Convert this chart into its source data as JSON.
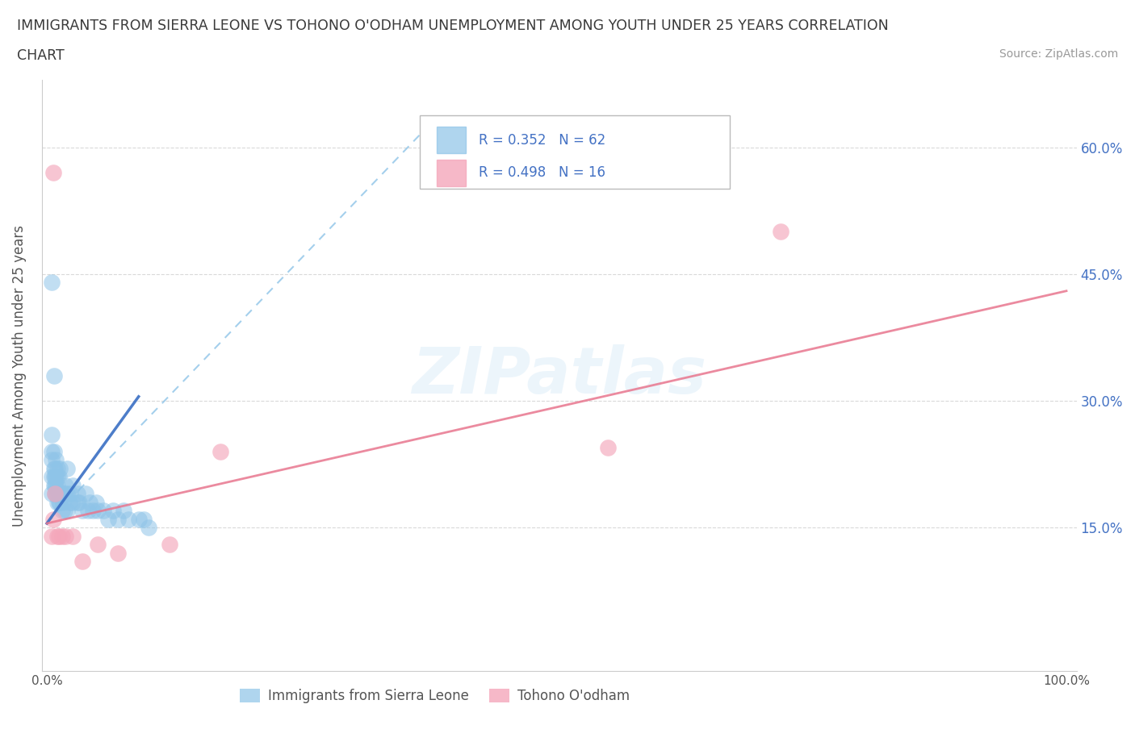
{
  "title_line1": "IMMIGRANTS FROM SIERRA LEONE VS TOHONO O'ODHAM UNEMPLOYMENT AMONG YOUTH UNDER 25 YEARS CORRELATION",
  "title_line2": "CHART",
  "source_text": "Source: ZipAtlas.com",
  "ylabel": "Unemployment Among Youth under 25 years",
  "xlim": [
    0.0,
    1.0
  ],
  "ylim": [
    0.0,
    0.65
  ],
  "y_ticks": [
    0.15,
    0.3,
    0.45,
    0.6
  ],
  "y_tick_right_labels": [
    "15.0%",
    "30.0%",
    "45.0%",
    "60.0%"
  ],
  "x_ticks": [
    0.0,
    1.0
  ],
  "x_tick_labels": [
    "0.0%",
    "100.0%"
  ],
  "legend_label1": "Immigrants from Sierra Leone",
  "legend_label2": "Tohono O'odham",
  "R1": 0.352,
  "N1": 62,
  "R2": 0.498,
  "N2": 16,
  "color_blue": "#8ec4e8",
  "color_pink": "#f4a7bb",
  "color_pink_line": "#e8768e",
  "color_blue_line_solid": "#3a6fc4",
  "color_blue_line_dash": "#8ec4e8",
  "color_tick_right": "#4472c4",
  "watermark": "ZIPatlas",
  "background_color": "#ffffff",
  "blue_solid_line_x": [
    0.0,
    0.09
  ],
  "blue_solid_line_y": [
    0.155,
    0.305
  ],
  "blue_dash_line_x": [
    0.0,
    0.37
  ],
  "blue_dash_line_y": [
    0.155,
    0.62
  ],
  "pink_line_x": [
    0.0,
    1.0
  ],
  "pink_line_y": [
    0.155,
    0.43
  ],
  "blue_scatter_x": [
    0.005,
    0.005,
    0.005,
    0.005,
    0.005,
    0.007,
    0.007,
    0.007,
    0.007,
    0.008,
    0.008,
    0.008,
    0.008,
    0.009,
    0.009,
    0.009,
    0.009,
    0.01,
    0.01,
    0.01,
    0.01,
    0.01,
    0.012,
    0.012,
    0.012,
    0.013,
    0.013,
    0.013,
    0.015,
    0.015,
    0.016,
    0.017,
    0.017,
    0.018,
    0.02,
    0.02,
    0.02,
    0.022,
    0.023,
    0.025,
    0.025,
    0.03,
    0.03,
    0.032,
    0.035,
    0.038,
    0.04,
    0.042,
    0.045,
    0.048,
    0.05,
    0.055,
    0.06,
    0.065,
    0.07,
    0.075,
    0.08,
    0.09,
    0.095,
    0.1,
    0.005,
    0.007
  ],
  "blue_scatter_y": [
    0.19,
    0.21,
    0.23,
    0.24,
    0.26,
    0.2,
    0.21,
    0.22,
    0.24,
    0.19,
    0.2,
    0.21,
    0.22,
    0.19,
    0.2,
    0.21,
    0.23,
    0.18,
    0.19,
    0.2,
    0.21,
    0.22,
    0.18,
    0.19,
    0.21,
    0.18,
    0.19,
    0.22,
    0.17,
    0.19,
    0.18,
    0.17,
    0.19,
    0.2,
    0.17,
    0.19,
    0.22,
    0.18,
    0.19,
    0.18,
    0.2,
    0.18,
    0.19,
    0.18,
    0.17,
    0.19,
    0.17,
    0.18,
    0.17,
    0.18,
    0.17,
    0.17,
    0.16,
    0.17,
    0.16,
    0.17,
    0.16,
    0.16,
    0.16,
    0.15,
    0.44,
    0.33
  ],
  "pink_scatter_x": [
    0.005,
    0.006,
    0.006,
    0.008,
    0.01,
    0.012,
    0.015,
    0.018,
    0.025,
    0.035,
    0.05,
    0.07,
    0.12,
    0.17,
    0.55,
    0.72
  ],
  "pink_scatter_y": [
    0.14,
    0.16,
    0.57,
    0.19,
    0.14,
    0.14,
    0.14,
    0.14,
    0.14,
    0.11,
    0.13,
    0.12,
    0.13,
    0.24,
    0.245,
    0.5
  ]
}
